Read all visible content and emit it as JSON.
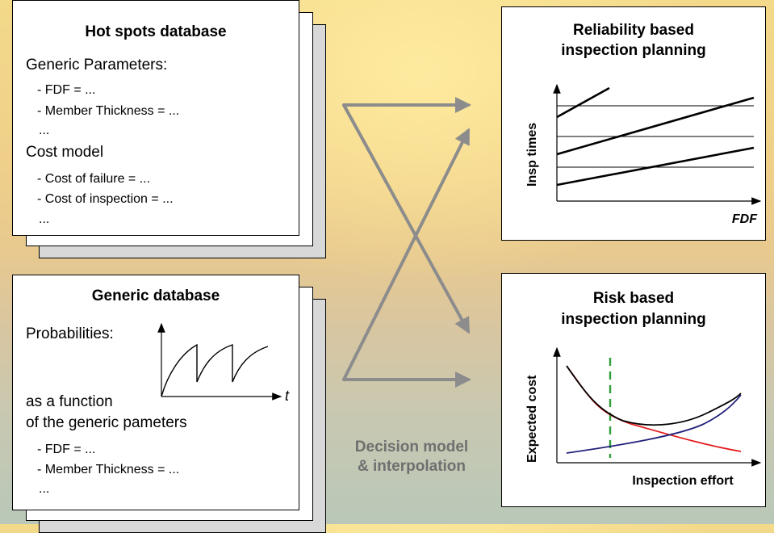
{
  "hotspots": {
    "title": "Hot spots database",
    "generic_label": "Generic Parameters:",
    "generic_items": [
      "- FDF = ...",
      "- Member Thickness = ...",
      "..."
    ],
    "cost_label": "Cost model",
    "cost_items": [
      "- Cost of failure = ...",
      "- Cost of inspection = ...",
      "..."
    ]
  },
  "generic_db": {
    "title": "Generic database",
    "prob_label": "Probabilities:",
    "func_line1": "as a function",
    "func_line2": "of the generic pameters",
    "t_label": "t",
    "items": [
      "- FDF = ...",
      "- Member Thickness = ...",
      "..."
    ]
  },
  "reliability": {
    "title_line1": "Reliability based",
    "title_line2": "inspection planning",
    "ylabel": "Insp times",
    "xlabel": "FDF"
  },
  "risk": {
    "title_line1": "Risk based",
    "title_line2": "inspection planning",
    "ylabel": "Expected cost",
    "xlabel": "Inspection effort"
  },
  "decision": {
    "line1": "Decision model",
    "line2": "& interpolation"
  },
  "colors": {
    "arrow": "#8c8c8c",
    "red_curve": "#e41a1c",
    "blue_curve": "#1f1f7a",
    "green_dash": "#2e9d3a"
  }
}
